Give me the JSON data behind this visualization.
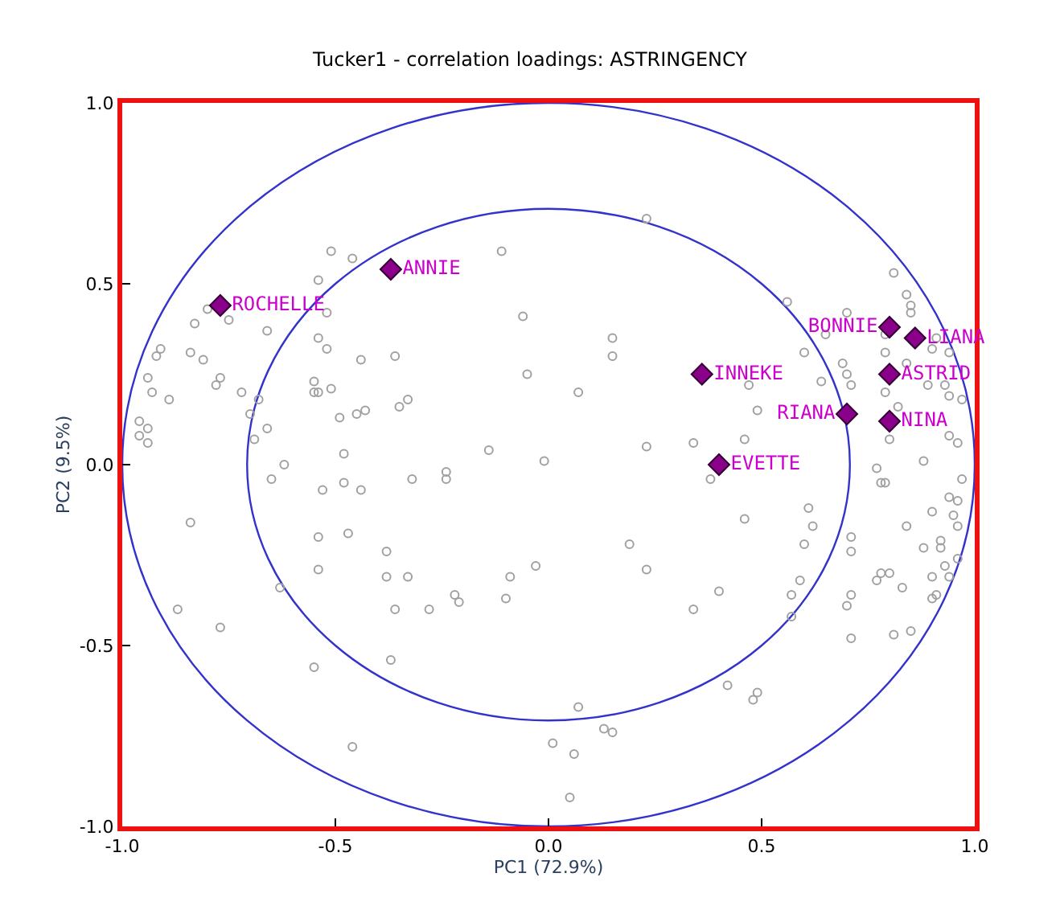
{
  "chart_data": {
    "type": "scatter",
    "title": "Tucker1 - correlation loadings: ASTRINGENCY",
    "xlabel": "PC1 (72.9%)",
    "ylabel": "PC2 (9.5%)",
    "xlim": [
      -1.0,
      1.0
    ],
    "ylim": [
      -1.0,
      1.0
    ],
    "xticks": [
      {
        "value": -1.0,
        "label": "-1.0"
      },
      {
        "value": -0.5,
        "label": "-0.5"
      },
      {
        "value": 0.0,
        "label": "0.0"
      },
      {
        "value": 0.5,
        "label": "0.5"
      },
      {
        "value": 1.0,
        "label": "1.0"
      }
    ],
    "yticks": [
      {
        "value": -1.0,
        "label": "-1.0"
      },
      {
        "value": -0.5,
        "label": "-0.5"
      },
      {
        "value": 0.0,
        "label": "0.0"
      },
      {
        "value": 0.5,
        "label": "0.5"
      },
      {
        "value": 1.0,
        "label": "1.0"
      }
    ],
    "grid": false,
    "series": [
      {
        "color": "#a0a0a0",
        "marker": "circle",
        "x": [
          -0.51,
          -0.46,
          -0.54,
          -0.52,
          -0.54,
          -0.52,
          -0.44,
          -0.36,
          -0.55,
          -0.55,
          -0.54,
          -0.51,
          -0.49,
          -0.45,
          -0.43,
          -0.35,
          -0.33,
          -0.11,
          -0.06,
          -0.05,
          -0.14,
          -0.01,
          -0.48,
          -0.62,
          -0.66,
          -0.75,
          -0.8,
          -0.83,
          -0.91,
          -0.92,
          -0.84,
          -0.81,
          -0.77,
          -0.78,
          -0.94,
          -0.93,
          -0.89,
          -0.72,
          -0.68,
          -0.7,
          -0.66,
          -0.69,
          -0.96,
          -0.94,
          -0.96,
          -0.94,
          0.23,
          0.15,
          0.15,
          0.07,
          0.47,
          0.49,
          0.46,
          0.34,
          0.23,
          0.56,
          0.65,
          0.7,
          0.6,
          0.64,
          0.69,
          0.7,
          0.71,
          0.81,
          0.84,
          0.85,
          0.85,
          0.79,
          0.79,
          0.84,
          0.79,
          0.82,
          0.89,
          0.93,
          0.94,
          0.97,
          0.9,
          0.94,
          0.91,
          0.8,
          0.88,
          0.94,
          0.96,
          -0.84,
          -0.87,
          -0.77,
          -0.65,
          -0.53,
          -0.48,
          -0.44,
          -0.54,
          -0.47,
          -0.54,
          -0.38,
          -0.38,
          -0.33,
          -0.36,
          -0.28,
          -0.22,
          -0.21,
          -0.1,
          -0.09,
          -0.03,
          -0.32,
          -0.24,
          -0.24,
          -0.55,
          -0.37,
          -0.46,
          0.01,
          -0.63,
          0.38,
          0.46,
          0.19,
          0.23,
          0.4,
          0.34,
          0.61,
          0.62,
          0.6,
          0.59,
          0.57,
          0.57,
          0.71,
          0.71,
          0.71,
          0.7,
          0.71,
          0.77,
          0.78,
          0.79,
          0.84,
          0.88,
          0.9,
          0.94,
          0.96,
          0.95,
          0.96,
          0.92,
          0.92,
          0.93,
          0.9,
          0.94,
          0.77,
          0.78,
          0.8,
          0.83,
          0.9,
          0.91,
          0.81,
          0.85,
          0.97,
          0.42,
          0.49,
          0.48,
          0.07,
          0.13,
          0.15,
          0.06,
          0.05,
          0.96
        ],
        "values": [
          0.59,
          0.57,
          0.51,
          0.42,
          0.35,
          0.32,
          0.29,
          0.3,
          0.23,
          0.2,
          0.2,
          0.21,
          0.13,
          0.14,
          0.15,
          0.16,
          0.18,
          0.59,
          0.41,
          0.25,
          0.04,
          0.01,
          0.03,
          0.0,
          0.37,
          0.4,
          0.43,
          0.39,
          0.32,
          0.3,
          0.31,
          0.29,
          0.24,
          0.22,
          0.24,
          0.2,
          0.18,
          0.2,
          0.18,
          0.14,
          0.1,
          0.07,
          0.12,
          0.1,
          0.08,
          0.06,
          0.68,
          0.35,
          0.3,
          0.2,
          0.22,
          0.15,
          0.07,
          0.06,
          0.05,
          0.45,
          0.36,
          0.42,
          0.31,
          0.23,
          0.28,
          0.25,
          0.22,
          0.53,
          0.47,
          0.44,
          0.42,
          0.36,
          0.31,
          0.28,
          0.2,
          0.16,
          0.22,
          0.22,
          0.19,
          0.18,
          0.32,
          0.31,
          0.35,
          0.07,
          0.01,
          0.08,
          0.06,
          -0.16,
          -0.4,
          -0.45,
          -0.04,
          -0.07,
          -0.05,
          -0.07,
          -0.2,
          -0.19,
          -0.29,
          -0.24,
          -0.31,
          -0.31,
          -0.4,
          -0.4,
          -0.36,
          -0.38,
          -0.37,
          -0.31,
          -0.28,
          -0.04,
          -0.02,
          -0.04,
          -0.56,
          -0.54,
          -0.78,
          -0.77,
          -0.34,
          -0.04,
          -0.15,
          -0.22,
          -0.29,
          -0.35,
          -0.4,
          -0.12,
          -0.17,
          -0.22,
          -0.32,
          -0.36,
          -0.42,
          -0.2,
          -0.24,
          -0.36,
          -0.39,
          -0.48,
          -0.01,
          -0.05,
          -0.05,
          -0.17,
          -0.23,
          -0.13,
          -0.09,
          -0.1,
          -0.14,
          -0.17,
          -0.21,
          -0.23,
          -0.28,
          -0.31,
          -0.31,
          -0.32,
          -0.3,
          -0.3,
          -0.34,
          -0.37,
          -0.36,
          -0.47,
          -0.46,
          -0.04,
          -0.61,
          -0.63,
          -0.65,
          -0.67,
          -0.73,
          -0.74,
          -0.8,
          -0.92,
          -0.26
        ]
      },
      {
        "color": "#8b008b",
        "marker": "diamond",
        "x": [
          -0.77,
          -0.37,
          0.36,
          0.4,
          0.7,
          0.8,
          0.8,
          0.8,
          0.86
        ],
        "values": [
          0.44,
          0.54,
          0.25,
          0.0,
          0.14,
          0.12,
          0.25,
          0.38,
          0.35
        ],
        "value_labels": [
          "ROCHELLE",
          "ANNIE",
          "INNEKE",
          "EVETTE",
          "RIANA",
          "NINA",
          "ASTRID",
          "BONNIE",
          "LIANA"
        ]
      }
    ]
  }
}
